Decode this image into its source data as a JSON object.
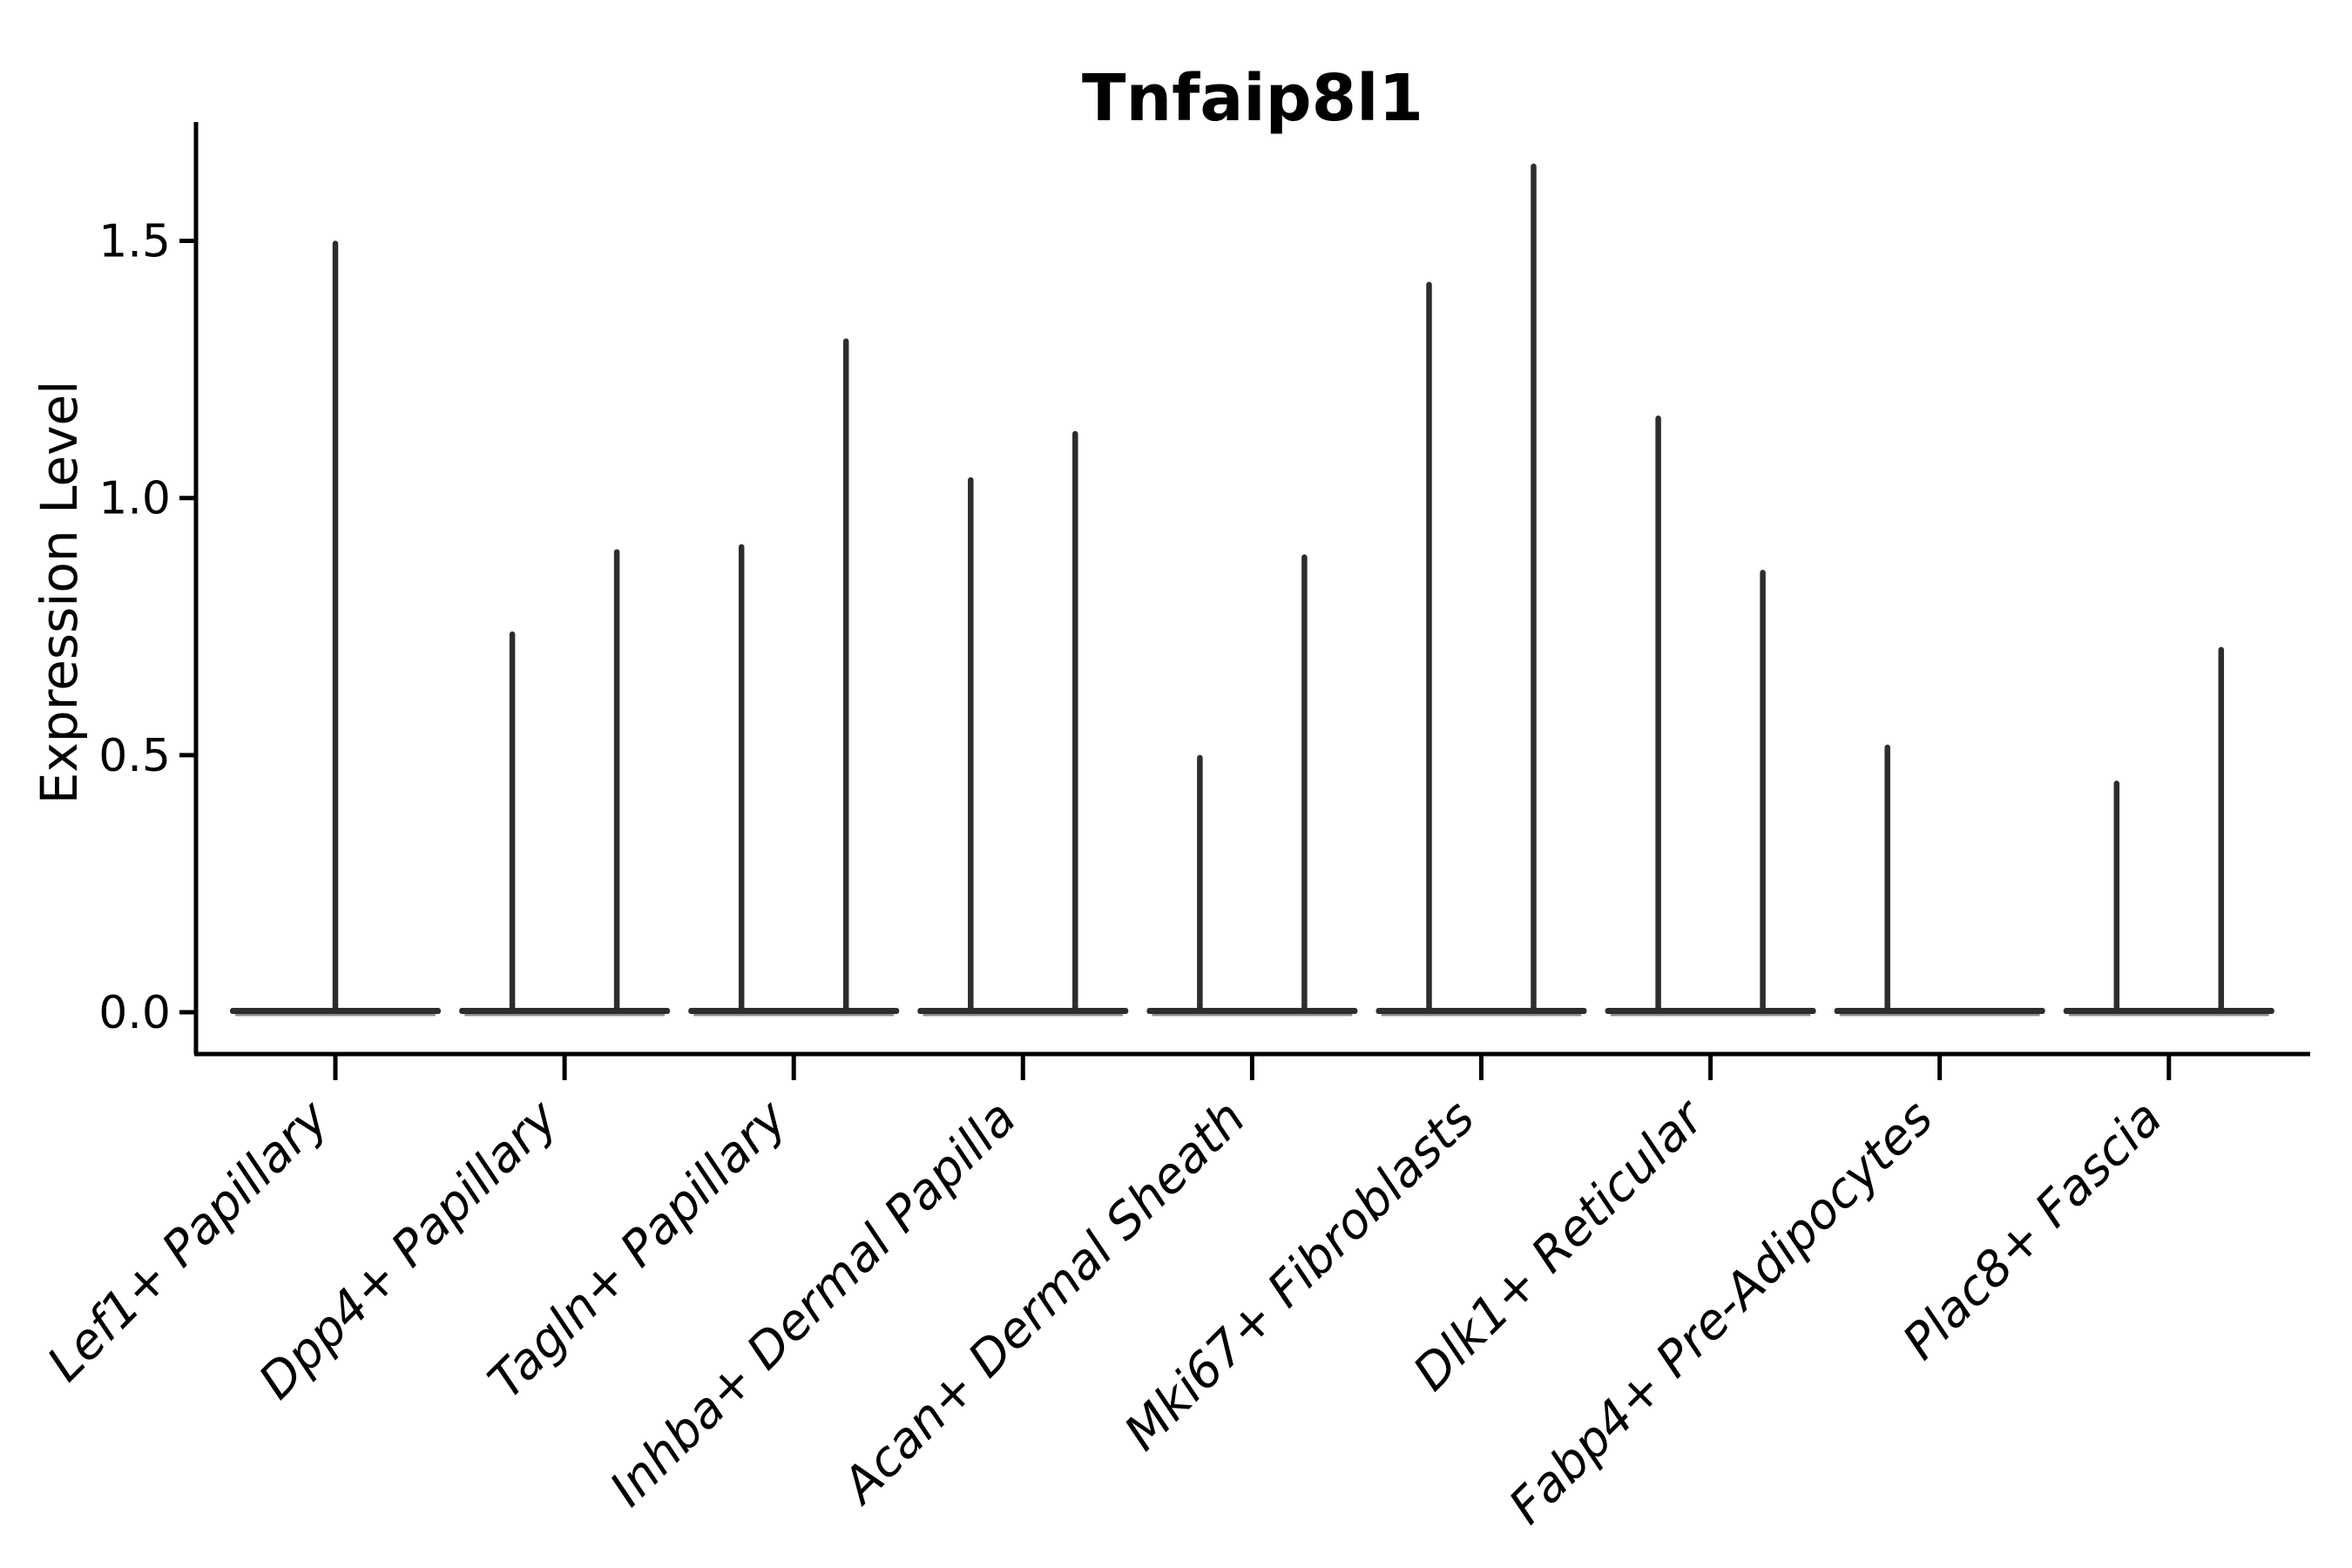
{
  "figure": {
    "title": "Tnfaip8l1",
    "ylabel": "Expression Level"
  },
  "chart_data": {
    "type": "violin",
    "title": "Tnfaip8l1",
    "xlabel": "",
    "ylabel": "Expression Level",
    "ylim": [
      -0.08,
      1.73
    ],
    "yticks": [
      0,
      0.5,
      1,
      1.5
    ],
    "ytick_labels": [
      "0.0",
      "0.5",
      "1.0",
      "1.5"
    ],
    "grid": false,
    "legend": "none",
    "categories": [
      "Lef1+ Papillary",
      "Dpp4+ Papillary",
      "Tagln+ Papillary",
      "Inhba+ Dermal Papilla",
      "Acan+ Dermal Sheath",
      "Mki67+ Fibroblasts",
      "Dlk1+ Reticular",
      "Fabp4+ Pre-Adipocytes",
      "Plac8+ Fascia"
    ],
    "violins": [
      {
        "category": "Lef1+ Papillary",
        "group_violins": [
          {
            "position": "center",
            "max_expression": 1.5
          }
        ]
      },
      {
        "category": "Dpp4+ Papillary",
        "group_violins": [
          {
            "position": "left",
            "max_expression": 0.74
          },
          {
            "position": "right",
            "max_expression": 0.9
          }
        ]
      },
      {
        "category": "Tagln+ Papillary",
        "group_violins": [
          {
            "position": "left",
            "max_expression": 0.91
          },
          {
            "position": "right",
            "max_expression": 1.31
          }
        ]
      },
      {
        "category": "Inhba+ Dermal Papilla",
        "group_violins": [
          {
            "position": "left",
            "max_expression": 1.04
          },
          {
            "position": "right",
            "max_expression": 1.13
          }
        ]
      },
      {
        "category": "Acan+ Dermal Sheath",
        "group_violins": [
          {
            "position": "left",
            "max_expression": 0.5
          },
          {
            "position": "right",
            "max_expression": 0.89
          }
        ]
      },
      {
        "category": "Mki67+ Fibroblasts",
        "group_violins": [
          {
            "position": "left",
            "max_expression": 1.42
          },
          {
            "position": "right",
            "max_expression": 1.65
          }
        ]
      },
      {
        "category": "Dlk1+ Reticular",
        "group_violins": [
          {
            "position": "left",
            "max_expression": 1.16
          },
          {
            "position": "right",
            "max_expression": 0.86
          }
        ]
      },
      {
        "category": "Fabp4+ Pre-Adipocytes",
        "group_violins": [
          {
            "position": "left",
            "max_expression": 0.52
          },
          {
            "position": "right",
            "max_expression": 0.0
          }
        ]
      },
      {
        "category": "Plac8+ Fascia",
        "group_violins": [
          {
            "position": "left",
            "max_expression": 0.45
          },
          {
            "position": "right",
            "max_expression": 0.71
          }
        ]
      }
    ],
    "distribution_note": "Each violin is a near-zero-inflated distribution: a wide flat body at expression 0 with a thin vertical tail reaching max_expression.",
    "colors": {
      "violin": "#2d2d2d",
      "violin_edge_light": "#8f8f8f",
      "axis": "#000000",
      "text": "#000000",
      "background": "#ffffff"
    }
  }
}
